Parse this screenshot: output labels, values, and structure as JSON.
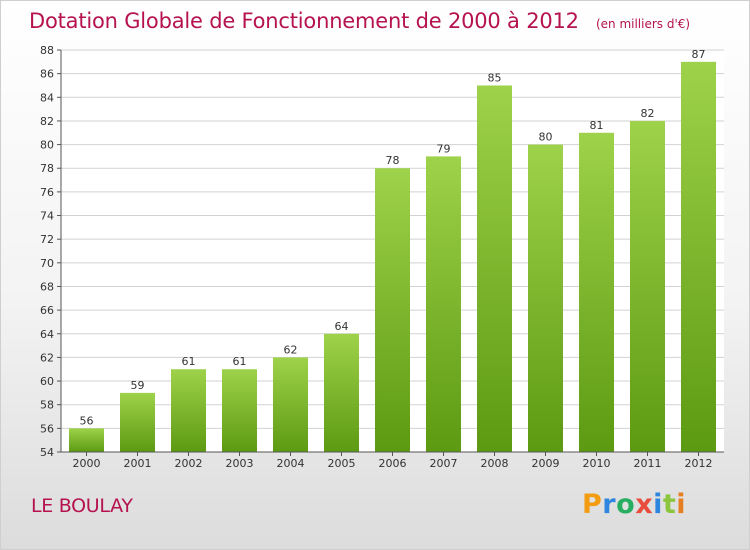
{
  "header": {
    "title": "Dotation Globale de Fonctionnement de 2000 à 2012",
    "subtitle": "(en milliers d'€)"
  },
  "footer": {
    "commune": "LE BOULAY",
    "logo": {
      "letters": [
        "P",
        "r",
        "o",
        "x",
        "i",
        "t",
        "i"
      ],
      "colors": [
        "#f39c12",
        "#2e86de",
        "#27ae60",
        "#e74c3c",
        "#2e86de",
        "#8cc63f",
        "#e67e22"
      ]
    }
  },
  "chart_data": {
    "type": "bar",
    "title": "Dotation Globale de Fonctionnement de 2000 à 2012",
    "subtitle": "(en milliers d'€)",
    "xlabel": "",
    "ylabel": "",
    "categories": [
      "2000",
      "2001",
      "2002",
      "2003",
      "2004",
      "2005",
      "2006",
      "2007",
      "2008",
      "2009",
      "2010",
      "2011",
      "2012"
    ],
    "values": [
      56,
      59,
      61,
      61,
      62,
      64,
      78,
      79,
      85,
      80,
      81,
      82,
      87
    ],
    "ylim": [
      54,
      88
    ],
    "yticks": [
      54,
      56,
      58,
      60,
      62,
      64,
      66,
      68,
      70,
      72,
      74,
      76,
      78,
      80,
      82,
      84,
      86,
      88
    ],
    "grid": true,
    "legend": "none",
    "colors": {
      "bar_top": "#9ed24a",
      "bar_bottom": "#5c9a12",
      "grid": "#d2d2d2",
      "axis": "#555555",
      "title": "#b5124f"
    }
  }
}
